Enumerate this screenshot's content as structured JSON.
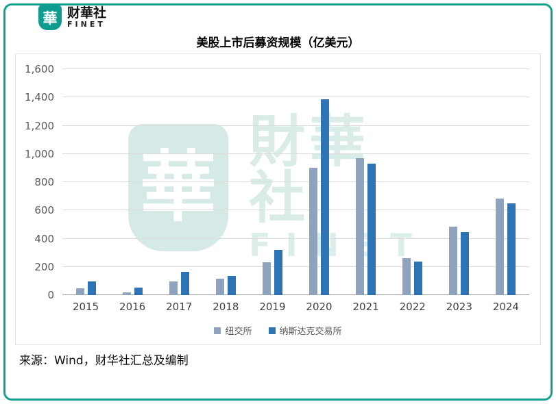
{
  "brand": {
    "logo_char": "華",
    "name_cn": "财華社",
    "name_en": "FINET",
    "teal": "#0d9c8f"
  },
  "title": "美股上市后募资规模（亿美元）",
  "source": "来源：Wind，财华社汇总及编制",
  "watermark": {
    "logo_char": "華",
    "text_cn": "財華社",
    "text_en": "FINET"
  },
  "chart_data": {
    "type": "bar",
    "title": "美股上市后募资规模（亿美元）",
    "categories": [
      "2015",
      "2016",
      "2017",
      "2018",
      "2019",
      "2020",
      "2021",
      "2022",
      "2023",
      "2024"
    ],
    "series": [
      {
        "name": "纽交所",
        "color": "#8fa3bf",
        "values": [
          50,
          20,
          95,
          115,
          235,
          900,
          970,
          260,
          485,
          685
        ]
      },
      {
        "name": "纳斯达克交易所",
        "color": "#2e74b5",
        "values": [
          95,
          55,
          165,
          135,
          320,
          1385,
          930,
          240,
          445,
          650
        ]
      }
    ],
    "xlabel": "",
    "ylabel": "",
    "ylim": [
      0,
      1600
    ],
    "ytick_step": 200,
    "grid": true,
    "legend_position": "bottom"
  }
}
